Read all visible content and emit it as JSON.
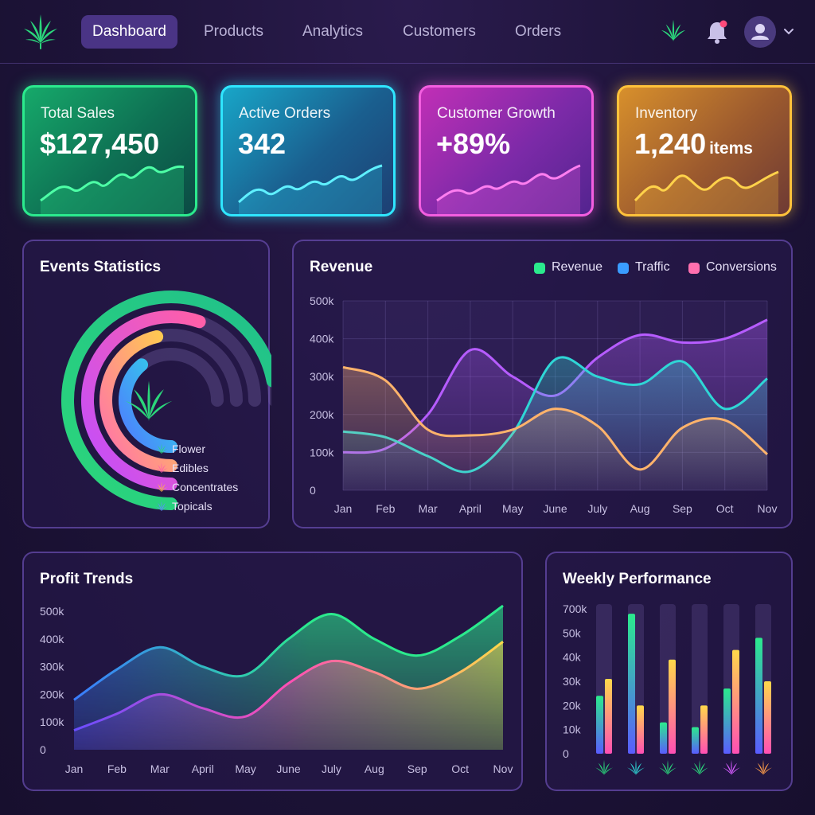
{
  "nav": {
    "items": [
      "Dashboard",
      "Products",
      "Analytics",
      "Customers",
      "Orders"
    ],
    "active_index": 0,
    "icons": [
      "cannabis-leaf-icon",
      "bell-icon",
      "user-icon",
      "chevron-down-icon"
    ],
    "brand_color": "#2bd67b",
    "notification_dot_color": "#ff4a7a"
  },
  "stats": [
    {
      "title": "Total Sales",
      "value": "$127,450",
      "unit": "",
      "color": "#2bea8d"
    },
    {
      "title": "Active Orders",
      "value": "342",
      "unit": "",
      "color": "#2fe6ff"
    },
    {
      "title": "Customer Growth",
      "value": "+89%",
      "unit": "",
      "color": "#f35ee0"
    },
    {
      "title": "Inventory",
      "value": "1,240",
      "unit": "items",
      "color": "#ffc23a"
    }
  ],
  "events": {
    "title": "Events Statistics",
    "legend": [
      {
        "label": "Flower",
        "color": "#2bd67b"
      },
      {
        "label": "Edibles",
        "color": "#ff5fa8"
      },
      {
        "label": "Concentrates",
        "color": "#ffb347"
      },
      {
        "label": "Topicals",
        "color": "#5b8cff"
      }
    ]
  },
  "revenue": {
    "title": "Revenue",
    "legend": [
      {
        "label": "Revenue",
        "color": "#2bea8d"
      },
      {
        "label": "Traffic",
        "color": "#3a9cff"
      },
      {
        "label": "Conversions",
        "color": "#ff6fae"
      }
    ]
  },
  "profit": {
    "title": "Profit Trends"
  },
  "weekly": {
    "title": "Weekly Performance"
  },
  "chart_data": [
    {
      "type": "bar",
      "title": "Events Statistics",
      "categories": [
        "Flower",
        "Edibles",
        "Concentrates",
        "Topicals"
      ],
      "values": [
        0.96,
        0.74,
        0.62,
        0.52
      ],
      "colors": [
        "#2bd67b",
        "#ff5fa8",
        "#ffb347",
        "#5b8cff"
      ]
    },
    {
      "type": "line",
      "title": "Revenue",
      "categories": [
        "Jan",
        "Feb",
        "Mar",
        "April",
        "May",
        "June",
        "July",
        "Aug",
        "Sep",
        "Oct",
        "Nov"
      ],
      "yticks": [
        "0",
        "100k",
        "200k",
        "300k",
        "400k",
        "500k"
      ],
      "ylim": [
        0,
        500
      ],
      "series": [
        {
          "name": "Revenue",
          "color": "#b65cff",
          "values": [
            100,
            110,
            200,
            370,
            300,
            250,
            350,
            410,
            390,
            400,
            450
          ]
        },
        {
          "name": "Traffic",
          "color": "#2fd6d6",
          "values": [
            155,
            140,
            90,
            50,
            150,
            345,
            300,
            280,
            340,
            215,
            295
          ]
        },
        {
          "name": "Conversions",
          "color": "#ffb36b",
          "values": [
            325,
            290,
            160,
            145,
            160,
            215,
            170,
            55,
            165,
            185,
            95
          ]
        }
      ]
    },
    {
      "type": "area",
      "title": "Profit Trends",
      "categories": [
        "Jan",
        "Feb",
        "Mar",
        "April",
        "May",
        "June",
        "July",
        "Aug",
        "Sep",
        "Oct",
        "Nov"
      ],
      "yticks": [
        "0",
        "100k",
        "200k",
        "300k",
        "400k",
        "500k"
      ],
      "ylim": [
        0,
        500
      ],
      "series": [
        {
          "values": [
            180,
            290,
            370,
            300,
            270,
            400,
            490,
            400,
            340,
            410,
            520
          ]
        },
        {
          "values": [
            70,
            130,
            200,
            150,
            120,
            240,
            320,
            280,
            220,
            280,
            390
          ]
        }
      ]
    },
    {
      "type": "bar",
      "title": "Weekly Performance",
      "yticks": [
        "0",
        "10k",
        "20k",
        "30k",
        "40k",
        "50k",
        "700k"
      ],
      "series": [
        {
          "values": [
            24,
            58,
            13,
            11,
            27,
            48
          ]
        },
        {
          "values": [
            31,
            20,
            39,
            20,
            43,
            30
          ]
        }
      ],
      "icon_colors": [
        "#2bd67b",
        "#2fd6d6",
        "#2bd67b",
        "#2bd67b",
        "#d65cff",
        "#ff9e4a"
      ]
    }
  ]
}
